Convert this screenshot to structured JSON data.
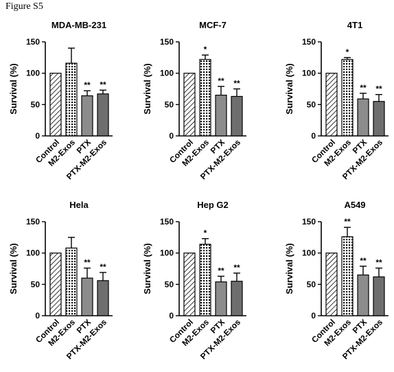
{
  "figure_label": "Figure S5",
  "colors": {
    "ptx": "#8c8c8c",
    "ptx_m2": "#6e6e6e",
    "axis": "#000000"
  },
  "chart_data": [
    {
      "type": "bar",
      "title": "MDA-MB-231",
      "ylabel": "Survival (%)",
      "ylim": [
        0,
        150
      ],
      "yticks": [
        0,
        50,
        100,
        150
      ],
      "categories": [
        "Control",
        "M2-Exos",
        "PTX",
        "PTX-M2-Exos"
      ],
      "values": [
        100,
        116,
        64,
        67
      ],
      "errors": [
        0,
        24,
        8,
        6
      ],
      "significance": [
        "",
        "",
        "**",
        "**"
      ]
    },
    {
      "type": "bar",
      "title": "MCF-7",
      "ylabel": "Survival (%)",
      "ylim": [
        0,
        150
      ],
      "yticks": [
        0,
        50,
        100,
        150
      ],
      "categories": [
        "Control",
        "M2-Exos",
        "PTX",
        "PTX-M2-Exos"
      ],
      "values": [
        100,
        122,
        65,
        63
      ],
      "errors": [
        0,
        7,
        14,
        12
      ],
      "significance": [
        "",
        "*",
        "**",
        "**"
      ]
    },
    {
      "type": "bar",
      "title": "4T1",
      "ylabel": "Survival (%)",
      "ylim": [
        0,
        150
      ],
      "yticks": [
        0,
        50,
        100,
        150
      ],
      "categories": [
        "Control",
        "M2-Exos",
        "PTX",
        "PTX-M2-Exos"
      ],
      "values": [
        100,
        122,
        59,
        55
      ],
      "errors": [
        0,
        3,
        9,
        11
      ],
      "significance": [
        "",
        "*",
        "**",
        "**"
      ]
    },
    {
      "type": "bar",
      "title": "Hela",
      "ylabel": "Survival (%)",
      "ylim": [
        0,
        150
      ],
      "yticks": [
        0,
        50,
        100,
        150
      ],
      "categories": [
        "Control",
        "M2-Exos",
        "PTX",
        "PTX-M2-Exos"
      ],
      "values": [
        100,
        108,
        60,
        56
      ],
      "errors": [
        0,
        17,
        16,
        13
      ],
      "significance": [
        "",
        "",
        "**",
        "**"
      ]
    },
    {
      "type": "bar",
      "title": "Hep G2",
      "ylabel": "Survival (%)",
      "ylim": [
        0,
        150
      ],
      "yticks": [
        0,
        50,
        100,
        150
      ],
      "categories": [
        "Control",
        "M2-Exos",
        "PTX",
        "PTX-M2-Exos"
      ],
      "values": [
        100,
        114,
        54,
        55
      ],
      "errors": [
        0,
        9,
        9,
        13
      ],
      "significance": [
        "",
        "*",
        "**",
        "**"
      ]
    },
    {
      "type": "bar",
      "title": "A549",
      "ylabel": "Survival (%)",
      "ylim": [
        0,
        150
      ],
      "yticks": [
        0,
        50,
        100,
        150
      ],
      "categories": [
        "Control",
        "M2-Exos",
        "PTX",
        "PTX-M2-Exos"
      ],
      "values": [
        100,
        126,
        65,
        62
      ],
      "errors": [
        0,
        15,
        14,
        14
      ],
      "significance": [
        "",
        "**",
        "**",
        "**"
      ]
    }
  ]
}
